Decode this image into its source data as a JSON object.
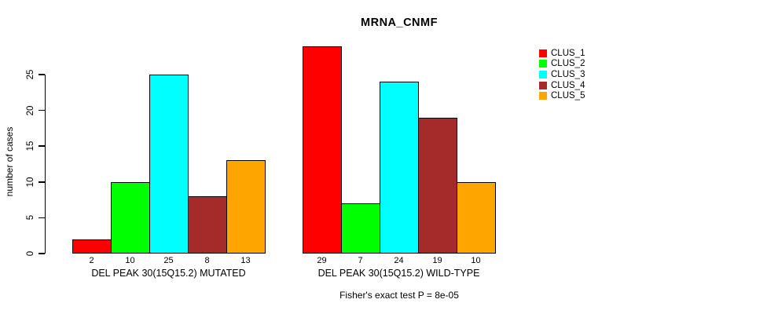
{
  "title": "MRNA_CNMF",
  "caption": "Fisher's exact test P = 8e-05",
  "y_axis": {
    "label": "number of cases",
    "ticks": [
      "0",
      "5",
      "10",
      "15",
      "20",
      "25"
    ]
  },
  "legend": {
    "position": "right-outside",
    "items": [
      {
        "label": "CLUS_1",
        "color": "#ff0000"
      },
      {
        "label": "CLUS_2",
        "color": "#00ff00"
      },
      {
        "label": "CLUS_3",
        "color": "#00ffff"
      },
      {
        "label": "CLUS_4",
        "color": "#a52a2a"
      },
      {
        "label": "CLUS_5",
        "color": "#ffa500"
      }
    ]
  },
  "chart_data": {
    "type": "bar",
    "title": "MRNA_CNMF",
    "xlabel": "",
    "ylabel": "number of cases",
    "ylim": [
      0,
      25
    ],
    "yticks": [
      0,
      5,
      10,
      15,
      20,
      25
    ],
    "grid": false,
    "legend_position": "right-outside",
    "clusters": [
      "CLUS_1",
      "CLUS_2",
      "CLUS_3",
      "CLUS_4",
      "CLUS_5"
    ],
    "cluster_colors": [
      "#ff0000",
      "#00ff00",
      "#00ffff",
      "#a52a2a",
      "#ffa500"
    ],
    "groups": [
      {
        "label": "DEL PEAK 30(15Q15.2) MUTATED",
        "values": [
          2,
          10,
          25,
          8,
          13
        ]
      },
      {
        "label": "DEL PEAK 30(15Q15.2) WILD-TYPE",
        "values": [
          29,
          7,
          24,
          19,
          10
        ]
      }
    ],
    "value_labels_shown": true,
    "annotation": "Fisher's exact test P = 8e-05"
  }
}
